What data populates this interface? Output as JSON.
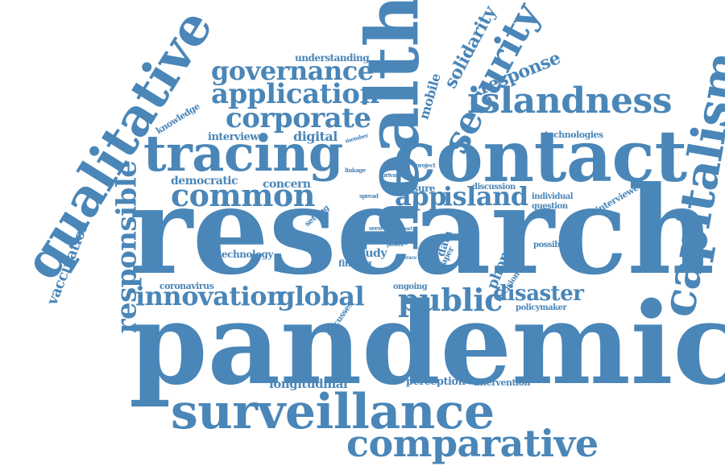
{
  "color": "#4a86b8",
  "words": {
    "research": "research",
    "pandemic": "pandemic",
    "contact": "contact",
    "health": "health",
    "qualitative": "qualitative",
    "tracing": "tracing",
    "surveillance": "surveillance",
    "comparative": "comparative",
    "capitalism": "capitalism",
    "islandness": "islandness",
    "security": "security",
    "common": "common",
    "app": "app",
    "island": "island",
    "innovation": "innovation",
    "global": "global",
    "public": "public",
    "responsible": "responsible",
    "governance": "governance",
    "application": "application",
    "corporate": "corporate",
    "disaster": "disaster",
    "solidarity": "solidarity",
    "response": "response",
    "vaccination": "vaccination",
    "longitudinal": "longitudinal",
    "understanding": "understanding",
    "mobile": "mobile",
    "knowledge": "knowledge",
    "interview": "interview",
    "digital": "digital",
    "democratic": "democratic",
    "concern": "concern",
    "technologies": "technologies",
    "interviewee": "interviewee",
    "individual": "individual",
    "question": "question",
    "discussion": "discussion",
    "measure": "measure",
    "possibility": "possibility",
    "technology": "technology",
    "coronavirus": "coronavirus",
    "study": "study",
    "finding": "finding",
    "data": "data",
    "phone": "phone",
    "paper": "paper",
    "decision": "decision",
    "policymaker": "policymaker",
    "ongoing": "ongoing",
    "perception": "perception",
    "intervention": "intervention",
    "discusses": "discusses",
    "setting": "setting",
    "spread": "spread",
    "linkage": "linkage",
    "privacy": "privacy",
    "project": "project",
    "member": "member",
    "design": "design",
    "seen": "seen",
    "virus": "virus",
    "power": "power",
    "part": "part",
    "trace": "trace"
  }
}
